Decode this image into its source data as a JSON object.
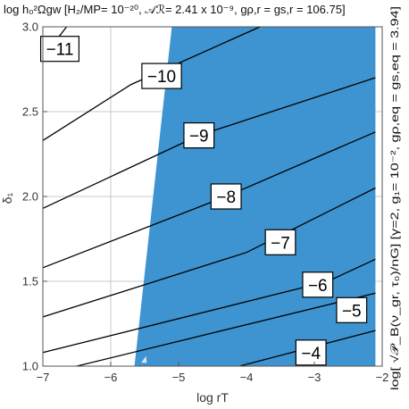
{
  "chart_data": {
    "type": "contour",
    "title": "log h₀²Ωgw [H₂/MP= 10⁻²⁰, 𝒜ℛ= 2.41 x 10⁻⁹, gρ,r = gs,r = 106.75]",
    "xlabel": "log rT",
    "ylabel": "δ₁",
    "right_label": "log[ √𝒫_B(ν_gr, τ₀)/nG] [γ=2, g₁= 10⁻², gρ,eq = gs,eq = 3.94]",
    "xlim": [
      -7.0,
      -2.0
    ],
    "ylim": [
      1.0,
      3.0
    ],
    "xticks": [
      "−7",
      "−6",
      "−5",
      "−4",
      "−3",
      "−2"
    ],
    "xtick_values": [
      -7,
      -6,
      -5,
      -4,
      -3,
      -2
    ],
    "yticks": [
      "1.0",
      "1.5",
      "2.0",
      "2.5",
      "3.0"
    ],
    "ytick_values": [
      1.0,
      1.5,
      2.0,
      2.5,
      3.0
    ],
    "grid": true,
    "region": {
      "color": "#3d94d0",
      "polygon": [
        [
          -5.65,
          1.0
        ],
        [
          -5.1,
          3.0
        ],
        [
          -2.1,
          3.0
        ],
        [
          -2.1,
          1.0
        ]
      ]
    },
    "small_patch": {
      "color": "#d8e8f2",
      "polygon": [
        [
          -5.55,
          1.02
        ],
        [
          -5.48,
          1.06
        ],
        [
          -5.47,
          1.02
        ]
      ]
    },
    "contours": [
      {
        "level_label": "−11",
        "points": [
          [
            -7.0,
            2.82
          ],
          [
            -6.65,
            3.0
          ]
        ],
        "label_at": [
          -6.75,
          2.87
        ]
      },
      {
        "level_label": "−10",
        "points": [
          [
            -7.0,
            2.33
          ],
          [
            -5.7,
            2.66
          ],
          [
            -3.8,
            3.0
          ]
        ],
        "label_at": [
          -5.25,
          2.71
        ]
      },
      {
        "level_label": "−9",
        "points": [
          [
            -7.0,
            1.93
          ],
          [
            -4.7,
            2.36
          ],
          [
            -2.1,
            2.7
          ]
        ],
        "label_at": [
          -4.7,
          2.36
        ]
      },
      {
        "level_label": "−8",
        "points": [
          [
            -7.0,
            1.58
          ],
          [
            -4.3,
            2.0
          ],
          [
            -2.1,
            2.38
          ]
        ],
        "label_at": [
          -4.3,
          2.0
        ]
      },
      {
        "level_label": "−7",
        "points": [
          [
            -7.0,
            1.29
          ],
          [
            -4.0,
            1.67
          ],
          [
            -2.1,
            2.05
          ]
        ],
        "label_at": [
          -3.5,
          1.73
        ]
      },
      {
        "level_label": "−6",
        "points": [
          [
            -7.0,
            1.08
          ],
          [
            -2.8,
            1.5
          ],
          [
            -2.1,
            1.63
          ]
        ],
        "label_at": [
          -2.95,
          1.48
        ]
      },
      {
        "level_label": "−5",
        "points": [
          [
            -6.5,
            1.0
          ],
          [
            -2.1,
            1.43
          ]
        ],
        "label_at": [
          -2.45,
          1.33
        ]
      },
      {
        "level_label": "−4",
        "points": [
          [
            -4.1,
            1.0
          ],
          [
            -2.1,
            1.21
          ]
        ],
        "label_at": [
          -3.05,
          1.08
        ]
      }
    ]
  }
}
